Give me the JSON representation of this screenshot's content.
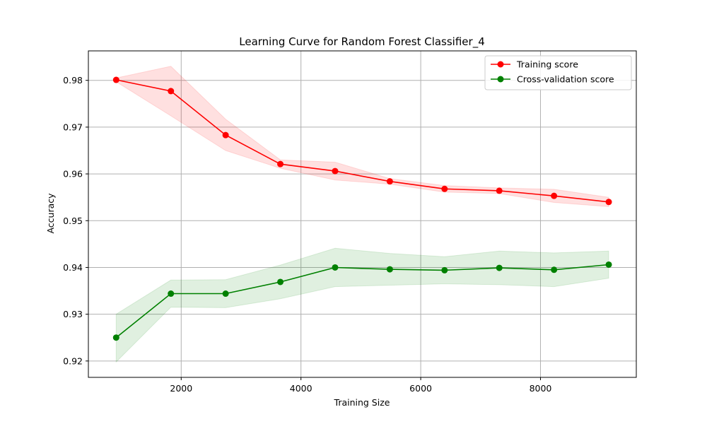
{
  "chart_data": {
    "type": "line",
    "title": "Learning Curve for Random Forest Classifier_4",
    "xlabel": "Training Size",
    "ylabel": "Accuracy",
    "xlim": [
      450,
      9600
    ],
    "ylim": [
      0.9165,
      0.9863
    ],
    "grid": true,
    "legend_position": "top-right",
    "x_ticks": [
      2000,
      4000,
      6000,
      8000
    ],
    "y_ticks": [
      0.92,
      0.93,
      0.94,
      0.95,
      0.96,
      0.97,
      0.98
    ],
    "x": [
      914,
      1828,
      2742,
      3656,
      4570,
      5484,
      6398,
      7312,
      8226,
      9140
    ],
    "series": [
      {
        "name": "Training score",
        "color": "#ff0000",
        "band_color": "#ff0000",
        "values": [
          0.9801,
          0.9777,
          0.9683,
          0.9621,
          0.9606,
          0.9584,
          0.9568,
          0.9564,
          0.9553,
          0.954
        ],
        "band_upper": [
          0.9805,
          0.983,
          0.9717,
          0.963,
          0.9625,
          0.959,
          0.9575,
          0.957,
          0.9567,
          0.955
        ],
        "band_lower": [
          0.9797,
          0.9724,
          0.965,
          0.9612,
          0.9587,
          0.9578,
          0.9561,
          0.9558,
          0.9539,
          0.953
        ]
      },
      {
        "name": "Cross-validation score",
        "color": "#008000",
        "band_color": "#008000",
        "values": [
          0.925,
          0.9344,
          0.9344,
          0.9369,
          0.94,
          0.9396,
          0.9394,
          0.9399,
          0.9395,
          0.9406
        ],
        "band_upper": [
          0.93,
          0.9373,
          0.9374,
          0.9405,
          0.9441,
          0.943,
          0.9423,
          0.9435,
          0.9431,
          0.9435
        ],
        "band_lower": [
          0.9198,
          0.9315,
          0.9314,
          0.9333,
          0.9359,
          0.9362,
          0.9365,
          0.9363,
          0.9359,
          0.9377
        ]
      }
    ]
  }
}
